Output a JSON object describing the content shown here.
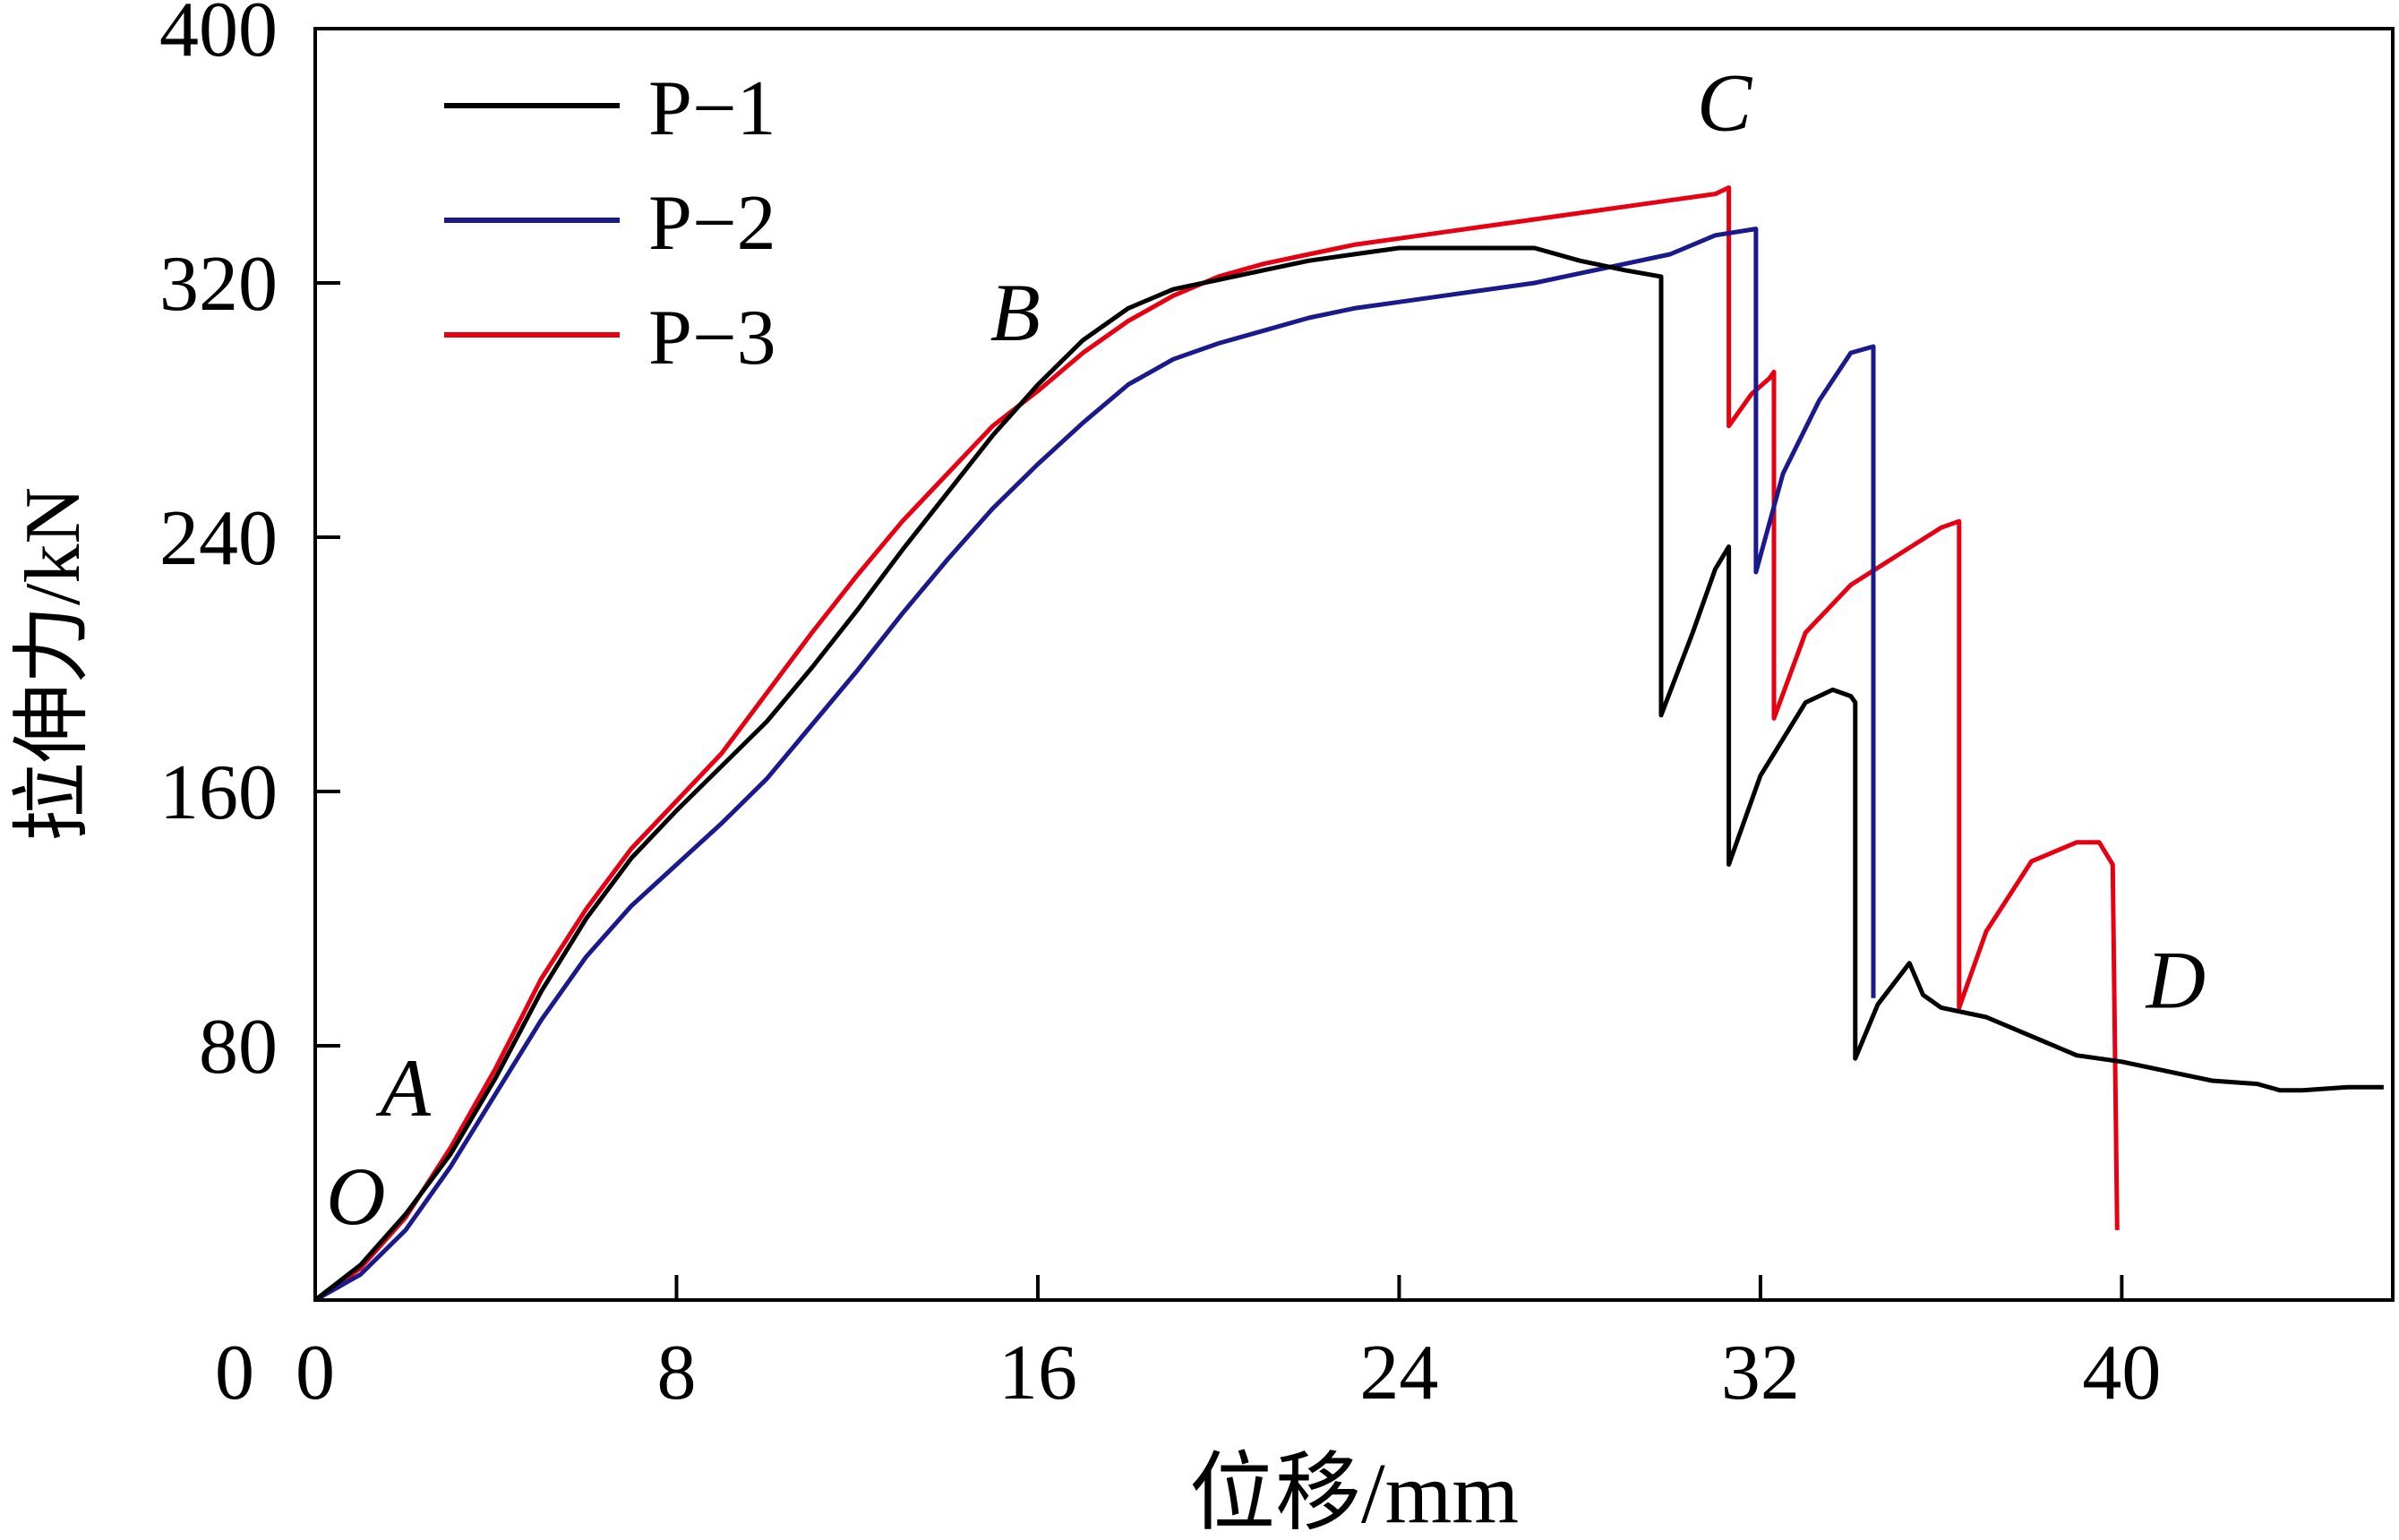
{
  "chart_data": {
    "type": "line",
    "xlabel": "位移/mm",
    "ylabel": "拉伸力/kN",
    "xlim": [
      0,
      46
    ],
    "ylim": [
      0,
      400
    ],
    "x_ticks": [
      0,
      8,
      16,
      24,
      32,
      40
    ],
    "y_ticks": [
      0,
      80,
      160,
      240,
      320,
      400
    ],
    "x_tick_labels": [
      "0",
      "8",
      "16",
      "24",
      "32",
      "40"
    ],
    "y_tick_labels": [
      "0",
      "80",
      "160",
      "240",
      "320",
      "400"
    ],
    "grid": false,
    "legend_position": "top-left",
    "series": [
      {
        "name": "P−1",
        "color": "#000000",
        "x": [
          0,
          1,
          2,
          3,
          4,
          5,
          6,
          7,
          8,
          9,
          10,
          11,
          12,
          13,
          14,
          15,
          16,
          17,
          18,
          19,
          20,
          21,
          22,
          23,
          24,
          25,
          26,
          27,
          28,
          29,
          29.8,
          29.8,
          30.5,
          31,
          31.3,
          31.3,
          32,
          33,
          33.6,
          34,
          34.1,
          34.1,
          34.6,
          35.3,
          35.6,
          36,
          37,
          38,
          39,
          40,
          41,
          42,
          43,
          43.5,
          44,
          45,
          45.8
        ],
        "y": [
          0,
          11,
          27,
          46,
          70,
          97,
          120,
          139,
          154,
          168,
          182,
          199,
          217,
          236,
          254,
          272,
          288,
          302,
          312,
          318,
          321,
          324,
          327,
          329,
          331,
          331,
          331,
          331,
          327,
          324,
          322,
          184,
          210,
          230,
          237,
          137,
          165,
          188,
          192,
          190,
          188,
          76,
          93,
          106,
          96,
          92,
          89,
          83,
          77,
          75,
          72,
          69,
          68,
          66,
          66,
          67,
          67
        ]
      },
      {
        "name": "P−2",
        "color": "#1a1a8c",
        "x": [
          0,
          1,
          2,
          3,
          4,
          5,
          6,
          7,
          8,
          9,
          10,
          11,
          12,
          13,
          14,
          15,
          16,
          17,
          18,
          19,
          20,
          21,
          22,
          23,
          24,
          25,
          26,
          27,
          28,
          29,
          30,
          31,
          31.9,
          31.9,
          32.5,
          33.3,
          34,
          34.5,
          34.5
        ],
        "y": [
          0,
          8,
          22,
          42,
          65,
          88,
          108,
          124,
          137,
          150,
          164,
          181,
          198,
          216,
          233,
          249,
          263,
          276,
          288,
          296,
          301,
          305,
          309,
          312,
          314,
          316,
          318,
          320,
          323,
          326,
          329,
          335,
          337,
          229,
          260,
          283,
          298,
          300,
          95
        ]
      },
      {
        "name": "P−3",
        "color": "#e60012",
        "x": [
          0,
          1,
          2,
          3,
          4,
          5,
          6,
          7,
          8,
          9,
          10,
          11,
          12,
          13,
          14,
          15,
          16,
          17,
          18,
          19,
          20,
          21,
          22,
          23,
          24,
          25,
          26,
          27,
          28,
          29,
          30,
          31,
          31.3,
          31.3,
          31.8,
          32.2,
          32.3,
          32.3,
          33,
          34,
          35,
          36,
          36.4,
          36.4,
          37,
          38,
          39,
          39.5,
          39.8,
          39.9
        ],
        "y": [
          0,
          10,
          26,
          48,
          73,
          101,
          123,
          142,
          157,
          172,
          191,
          210,
          228,
          245,
          260,
          275,
          286,
          298,
          308,
          316,
          322,
          326,
          329,
          332,
          334,
          336,
          338,
          340,
          342,
          344,
          346,
          348,
          350,
          275,
          285,
          290,
          292,
          183,
          210,
          225,
          234,
          243,
          245,
          92,
          116,
          138,
          144,
          144,
          137,
          22
        ]
      }
    ],
    "annotations": [
      {
        "text": "O",
        "x": 0.9,
        "y": 24
      },
      {
        "text": "A",
        "x": 2.0,
        "y": 58
      },
      {
        "text": "B",
        "x": 15.5,
        "y": 302
      },
      {
        "text": "C",
        "x": 31.2,
        "y": 368
      },
      {
        "text": "D",
        "x": 41.2,
        "y": 92
      }
    ]
  }
}
